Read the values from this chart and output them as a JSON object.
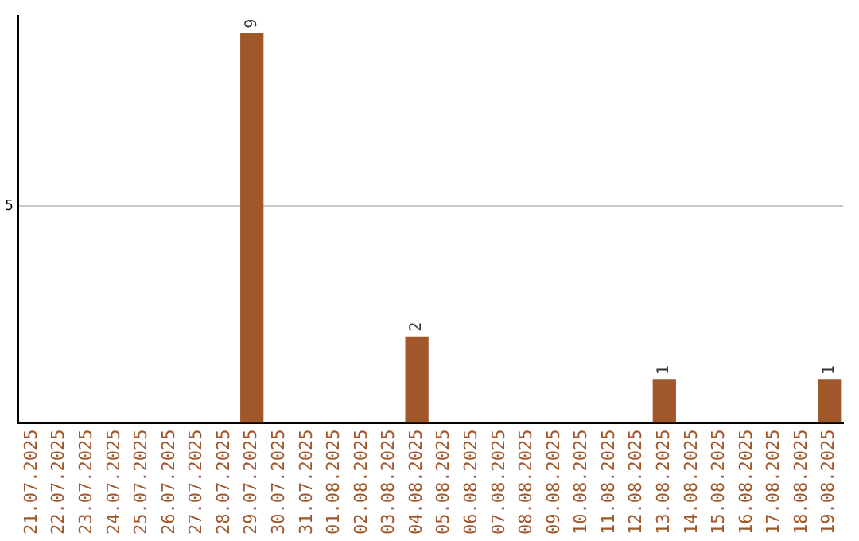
{
  "chart_data": {
    "type": "bar",
    "categories": [
      "21.07.2025",
      "22.07.2025",
      "23.07.2025",
      "24.07.2025",
      "25.07.2025",
      "26.07.2025",
      "27.07.2025",
      "28.07.2025",
      "29.07.2025",
      "30.07.2025",
      "31.07.2025",
      "01.08.2025",
      "02.08.2025",
      "03.08.2025",
      "04.08.2025",
      "05.08.2025",
      "06.08.2025",
      "07.08.2025",
      "08.08.2025",
      "09.08.2025",
      "10.08.2025",
      "11.08.2025",
      "12.08.2025",
      "13.08.2025",
      "14.08.2025",
      "15.08.2025",
      "16.08.2025",
      "17.08.2025",
      "18.08.2025",
      "19.08.2025"
    ],
    "values": [
      0,
      0,
      0,
      0,
      0,
      0,
      0,
      0,
      9,
      0,
      0,
      0,
      0,
      0,
      2,
      0,
      0,
      0,
      0,
      0,
      0,
      0,
      0,
      1,
      0,
      0,
      0,
      0,
      0,
      1
    ],
    "value_labels": [
      null,
      null,
      null,
      null,
      null,
      null,
      null,
      null,
      "9",
      null,
      null,
      null,
      null,
      null,
      "2",
      null,
      null,
      null,
      null,
      null,
      null,
      null,
      null,
      "1",
      null,
      null,
      null,
      null,
      null,
      "1"
    ],
    "color": "#a0572a",
    "ylim": [
      0,
      9.4
    ],
    "yticks": [
      5
    ],
    "grid": "y",
    "legend": false
  }
}
